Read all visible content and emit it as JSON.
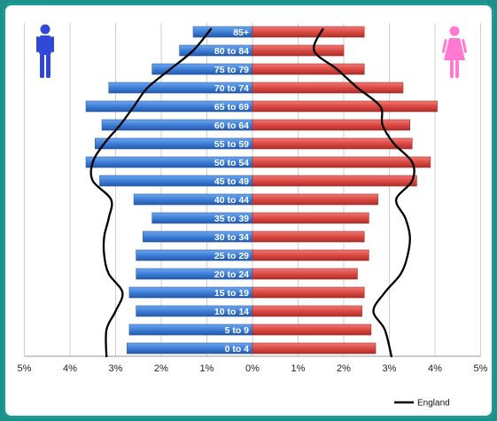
{
  "chart_data": {
    "type": "bar",
    "subtype": "population-pyramid",
    "categories": [
      "0 to 4",
      "5 to 9",
      "10 to 14",
      "15 to 19",
      "20 to 24",
      "25 to 29",
      "30 to 34",
      "35 to 39",
      "40 to 44",
      "45 to 49",
      "50 to 54",
      "55 to 59",
      "60 to 64",
      "65 to 69",
      "70 to 74",
      "75 to 79",
      "80 to 84",
      "85+"
    ],
    "series": [
      {
        "values": [
          2.75,
          2.7,
          2.55,
          2.7,
          2.55,
          2.55,
          2.4,
          2.2,
          2.6,
          3.35,
          3.65,
          3.45,
          3.3,
          3.65,
          3.15,
          2.2,
          1.6,
          1.3
        ],
        "color": "#3a7bd5"
      },
      {
        "values": [
          2.7,
          2.6,
          2.4,
          2.45,
          2.3,
          2.55,
          2.45,
          2.55,
          2.75,
          3.6,
          3.9,
          3.5,
          3.45,
          4.05,
          3.3,
          2.45,
          2.0,
          2.45
        ],
        "color": "#d9453f"
      },
      {
        "name": "England",
        "values": [
          3.2,
          3.2,
          3.0,
          2.85,
          3.15,
          3.25,
          3.25,
          3.15,
          3.1,
          3.5,
          3.5,
          3.25,
          2.9,
          2.6,
          2.3,
          1.8,
          1.3,
          0.9
        ],
        "color": "#000000"
      },
      {
        "values": [
          3.05,
          2.9,
          2.65,
          2.9,
          3.25,
          3.4,
          3.45,
          3.35,
          3.15,
          3.5,
          3.5,
          3.1,
          2.85,
          2.8,
          2.3,
          1.85,
          1.35,
          1.55
        ],
        "color": "#000000"
      }
    ],
    "xlabel": "",
    "ylabel": "",
    "xticks": [
      "5%",
      "4%",
      "3%",
      "2%",
      "1%",
      "0%",
      "1%",
      "2%",
      "3%",
      "4%",
      "5%"
    ],
    "xlim": [
      -5,
      5
    ],
    "grid": true,
    "legend": {
      "entries": [
        "England"
      ],
      "position": "bottom-right"
    },
    "icons": {
      "left": "male-figure-icon",
      "right": "female-figure-icon",
      "left_color": "#2f48d6",
      "right_color": "#ff7ad0"
    }
  }
}
